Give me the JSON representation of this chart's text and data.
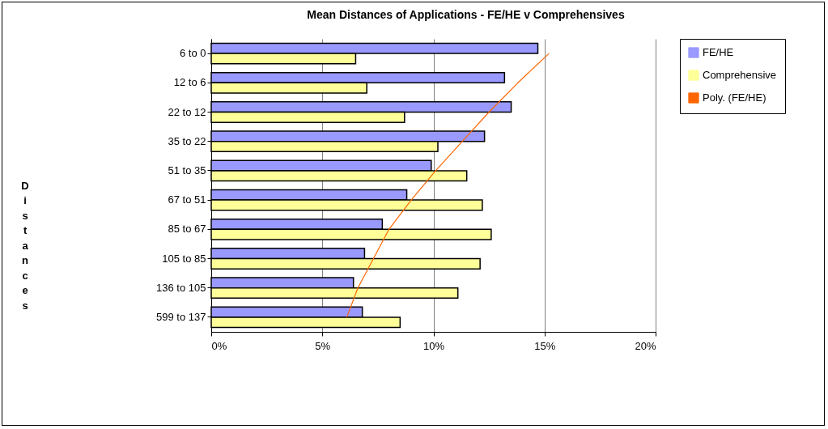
{
  "chart_data": {
    "type": "bar",
    "orientation": "horizontal",
    "title": "Mean Distances of Applications - FE/HE v Comprehensives",
    "ylabel": "Distances",
    "categories": [
      "6 to 0",
      "12 to 6",
      "22 to 12",
      "35 to 22",
      "51 to 35",
      "67 to 51",
      "85 to 67",
      "105 to 85",
      "136 to 105",
      "599 to 137"
    ],
    "series": [
      {
        "name": "FE/HE",
        "color": "#9999ff",
        "values": [
          14.7,
          13.2,
          13.5,
          12.3,
          9.9,
          8.8,
          7.7,
          6.9,
          6.4,
          6.8
        ]
      },
      {
        "name": "Comprehensive",
        "color": "#ffff99",
        "values": [
          6.5,
          7.0,
          8.7,
          10.2,
          11.5,
          12.2,
          12.6,
          12.1,
          11.1,
          8.5
        ]
      },
      {
        "name": "Poly. (FE/HE)",
        "type": "line",
        "color": "#ff6600",
        "values": [
          15.2,
          13.8,
          12.5,
          11.3,
          10.1,
          9.0,
          8.0,
          7.3,
          6.6,
          6.1
        ]
      }
    ],
    "xlim": [
      0,
      20
    ],
    "xticks": [
      {
        "value": 0,
        "label": "0%"
      },
      {
        "value": 5,
        "label": "5%"
      },
      {
        "value": 10,
        "label": "10%"
      },
      {
        "value": 15,
        "label": "15%"
      },
      {
        "value": 20,
        "label": "20%"
      }
    ],
    "grid": "x",
    "legend": "right"
  }
}
